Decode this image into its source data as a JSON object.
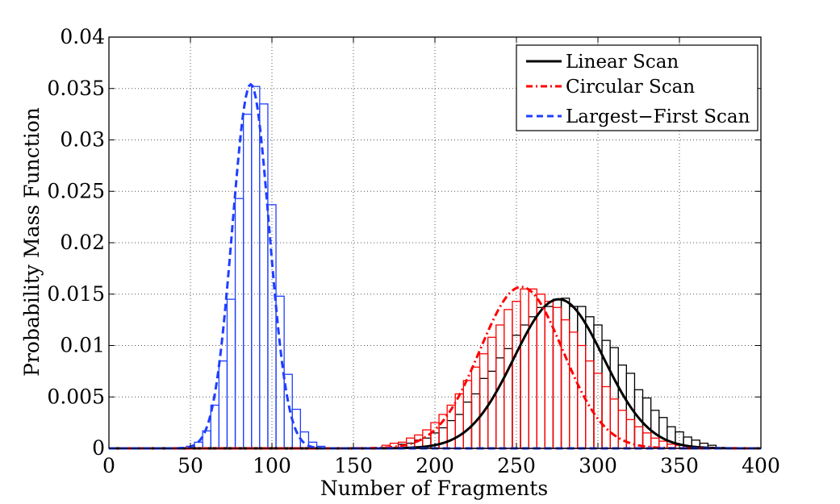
{
  "chart_data": {
    "type": "bar",
    "title": "",
    "xlabel": "Number of Fragments",
    "ylabel": "Probability Mass Function",
    "xlim": [
      0,
      400
    ],
    "ylim": [
      0,
      0.04
    ],
    "xticks": [
      "0",
      "50",
      "100",
      "150",
      "200",
      "250",
      "300",
      "350",
      "400"
    ],
    "yticks": [
      "0",
      "0.005",
      "0.01",
      "0.015",
      "0.02",
      "0.025",
      "0.03",
      "0.035",
      "0.04"
    ],
    "grid": true,
    "legend_position": "top-right",
    "bin_width": 5,
    "series": [
      {
        "name": "Linear Scan",
        "color": "#000000",
        "line_style": "solid",
        "fit": {
          "distribution": "normal",
          "mean": 276,
          "std": 27.5,
          "peak": 0.0145
        },
        "bins": [
          [
            180,
            0.0004
          ],
          [
            185,
            0.0005
          ],
          [
            190,
            0.0008
          ],
          [
            195,
            0.001
          ],
          [
            200,
            0.0015
          ],
          [
            205,
            0.002
          ],
          [
            210,
            0.0027
          ],
          [
            215,
            0.0033
          ],
          [
            220,
            0.0045
          ],
          [
            225,
            0.0053
          ],
          [
            230,
            0.0068
          ],
          [
            235,
            0.0075
          ],
          [
            240,
            0.0088
          ],
          [
            245,
            0.0097
          ],
          [
            250,
            0.011
          ],
          [
            255,
            0.012
          ],
          [
            260,
            0.0128
          ],
          [
            265,
            0.0137
          ],
          [
            270,
            0.0138
          ],
          [
            275,
            0.0145
          ],
          [
            280,
            0.0146
          ],
          [
            285,
            0.0138
          ],
          [
            290,
            0.0138
          ],
          [
            295,
            0.0128
          ],
          [
            300,
            0.012
          ],
          [
            305,
            0.0105
          ],
          [
            310,
            0.0098
          ],
          [
            315,
            0.0081
          ],
          [
            320,
            0.0073
          ],
          [
            325,
            0.0057
          ],
          [
            330,
            0.0049
          ],
          [
            335,
            0.0037
          ],
          [
            340,
            0.003
          ],
          [
            345,
            0.0021
          ],
          [
            350,
            0.0016
          ],
          [
            355,
            0.0011
          ],
          [
            360,
            0.0008
          ],
          [
            365,
            0.0005
          ],
          [
            370,
            0.0003
          ]
        ]
      },
      {
        "name": "Circular Scan",
        "color": "#ff0000",
        "line_style": "dash-dot",
        "fit": {
          "distribution": "normal",
          "mean": 253,
          "std": 25.5,
          "peak": 0.0157
        },
        "bins": [
          [
            170,
            0.0003
          ],
          [
            175,
            0.0005
          ],
          [
            180,
            0.0006
          ],
          [
            185,
            0.001
          ],
          [
            190,
            0.0013
          ],
          [
            195,
            0.0018
          ],
          [
            200,
            0.0025
          ],
          [
            205,
            0.0033
          ],
          [
            210,
            0.0042
          ],
          [
            215,
            0.0053
          ],
          [
            220,
            0.0066
          ],
          [
            225,
            0.0079
          ],
          [
            230,
            0.0092
          ],
          [
            235,
            0.0108
          ],
          [
            240,
            0.012
          ],
          [
            245,
            0.0135
          ],
          [
            250,
            0.0143
          ],
          [
            255,
            0.0155
          ],
          [
            260,
            0.0155
          ],
          [
            265,
            0.015
          ],
          [
            270,
            0.0143
          ],
          [
            275,
            0.0137
          ],
          [
            280,
            0.0125
          ],
          [
            285,
            0.0113
          ],
          [
            290,
            0.01
          ],
          [
            295,
            0.0085
          ],
          [
            300,
            0.0073
          ],
          [
            305,
            0.006
          ],
          [
            310,
            0.0048
          ],
          [
            315,
            0.0037
          ],
          [
            320,
            0.0028
          ],
          [
            325,
            0.0021
          ],
          [
            330,
            0.0015
          ],
          [
            335,
            0.001
          ],
          [
            340,
            0.0007
          ],
          [
            345,
            0.0004
          ],
          [
            350,
            0.0003
          ]
        ]
      },
      {
        "name": "Largest−First Scan",
        "color": "#1f3fff",
        "line_style": "dashed",
        "fit": {
          "distribution": "normal",
          "mean": 87,
          "std": 11.3,
          "peak": 0.0354
        },
        "bins": [
          [
            50,
            0.0002
          ],
          [
            55,
            0.0006
          ],
          [
            60,
            0.0017
          ],
          [
            65,
            0.0042
          ],
          [
            70,
            0.0085
          ],
          [
            75,
            0.0145
          ],
          [
            80,
            0.0243
          ],
          [
            85,
            0.0325
          ],
          [
            90,
            0.0352
          ],
          [
            95,
            0.0335
          ],
          [
            100,
            0.0237
          ],
          [
            105,
            0.0148
          ],
          [
            110,
            0.0072
          ],
          [
            115,
            0.0038
          ],
          [
            120,
            0.0016
          ],
          [
            125,
            0.0006
          ],
          [
            130,
            0.0002
          ]
        ]
      }
    ]
  }
}
